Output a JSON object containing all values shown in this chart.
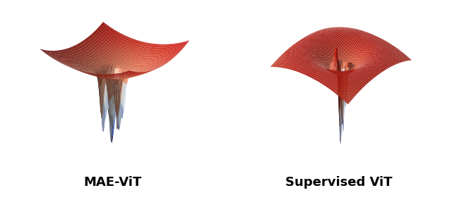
{
  "title_left": "MAE-ViT",
  "title_right": "Supervised ViT",
  "title_fontsize": 13,
  "title_fontweight": "bold",
  "figsize": [
    6.4,
    2.94
  ],
  "dpi": 100,
  "background_color": "#ffffff",
  "cmap_stops": [
    [
      0.0,
      "#1a2ecc"
    ],
    [
      0.12,
      "#5577dd"
    ],
    [
      0.25,
      "#aabbee"
    ],
    [
      0.38,
      "#ddeeff"
    ],
    [
      0.5,
      "#ffffff"
    ],
    [
      0.62,
      "#ffccaa"
    ],
    [
      0.75,
      "#ee7755"
    ],
    [
      0.88,
      "#dd3322"
    ],
    [
      1.0,
      "#cc1111"
    ]
  ]
}
